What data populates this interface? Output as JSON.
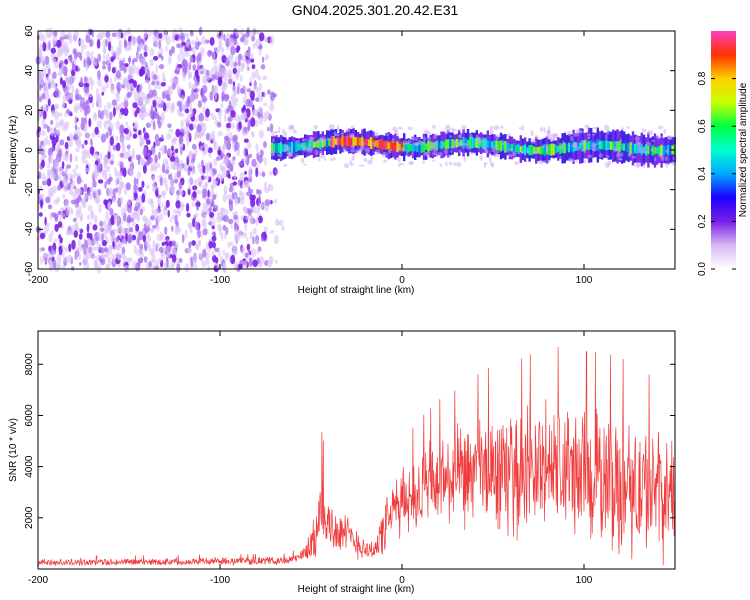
{
  "title": "GN04.2025.301.20.42.E31",
  "chart_data": [
    {
      "type": "heatmap",
      "name": "spectrogram",
      "xlabel": "Height of straight line (km)",
      "ylabel": "Frequency (Hz)",
      "xlim": [
        -200,
        150
      ],
      "ylim": [
        -60,
        60
      ],
      "xticks": [
        -200,
        -100,
        0,
        100
      ],
      "yticks": [
        -60,
        -40,
        -20,
        0,
        20,
        40,
        60
      ],
      "grid": false,
      "description_regions": {
        "noise_region_x": [
          -200,
          -65
        ],
        "signal_band_x": [
          -72,
          150
        ],
        "signal_band_center_hz": 2,
        "peak_intensity_x": [
          -40,
          0
        ]
      },
      "colorbar": {
        "label": "Normalized spectral amplitude",
        "range": [
          0,
          1
        ],
        "ticks": [
          0.0,
          0.2,
          0.4,
          0.6,
          0.8
        ],
        "colormap": [
          "#ffffff",
          "#d7b8f5",
          "#7a1fe6",
          "#1b00ff",
          "#00a8ff",
          "#00ffd0",
          "#00ff40",
          "#c8ff00",
          "#ffd000",
          "#ff3000",
          "#ff40c0"
        ]
      }
    },
    {
      "type": "line",
      "name": "snr",
      "xlabel": "Height of straight line (km)",
      "ylabel": "SNR (10 * v/v)",
      "xlim": [
        -200,
        150
      ],
      "ylim": [
        0,
        9300
      ],
      "xticks": [
        -200,
        -100,
        0,
        100
      ],
      "yticks": [
        2000,
        4000,
        6000,
        8000
      ],
      "grid": false,
      "color": "#f03c3c",
      "envelope": {
        "x": [
          -200,
          -140,
          -62,
          -55,
          -48,
          -44,
          -40,
          -36,
          -30,
          -24,
          -18,
          -14,
          -10,
          -4,
          0,
          10,
          20,
          30,
          40,
          50,
          60,
          70,
          80,
          90,
          100,
          110,
          120,
          130,
          140,
          145,
          150
        ],
        "mean": [
          250,
          280,
          330,
          500,
          1200,
          2300,
          1700,
          1500,
          1300,
          1000,
          700,
          900,
          1500,
          2400,
          2600,
          3000,
          3400,
          3500,
          3700,
          3800,
          3700,
          3900,
          4000,
          3900,
          3700,
          3500,
          3300,
          3100,
          2900,
          2800,
          3000
        ],
        "amp": [
          150,
          160,
          170,
          300,
          900,
          1900,
          1200,
          1000,
          900,
          700,
          400,
          700,
          1100,
          1400,
          1500,
          1800,
          2000,
          2200,
          2400,
          2600,
          2700,
          2800,
          2900,
          3000,
          3000,
          3100,
          3100,
          3000,
          2800,
          2700,
          2600
        ]
      }
    }
  ]
}
